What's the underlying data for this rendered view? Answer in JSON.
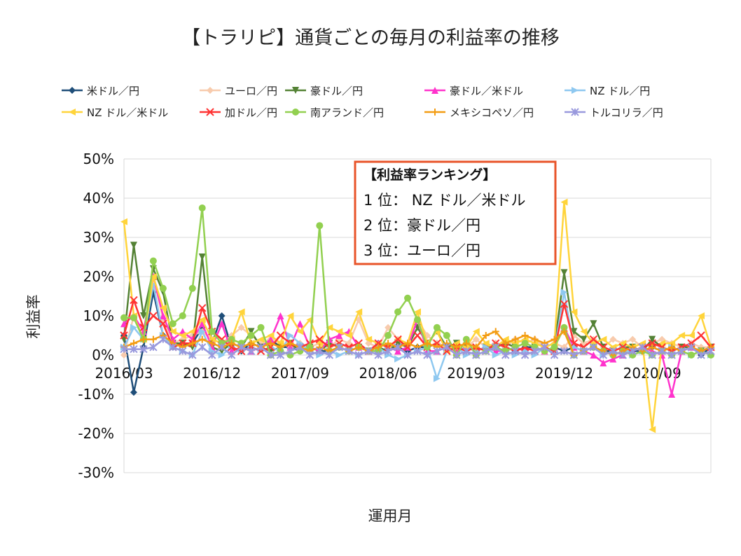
{
  "chart_data": {
    "type": "line",
    "title": "【トラリピ】通貨ごとの毎月の利益率の推移",
    "xlabel": "運用月",
    "ylabel": "利益率",
    "ylim": [
      -0.3,
      0.5
    ],
    "ytick_labels": [
      "50%",
      "40%",
      "30%",
      "20%",
      "10%",
      "0%",
      "-10%",
      "-20%",
      "-30%"
    ],
    "x_tick_labels": [
      "2016/03",
      "2016/12",
      "2017/09",
      "2018/06",
      "2019/03",
      "2019/12",
      "2020/09"
    ],
    "months_count": 61,
    "legend_position": "top",
    "grid": true,
    "series": [
      {
        "name": "米ドル／円",
        "color": "#1f4e79",
        "marker": "diamond",
        "values": [
          0.05,
          -0.095,
          0.02,
          0.16,
          0.05,
          0.02,
          0.03,
          0.03,
          0.07,
          0.03,
          0.1,
          0.02,
          0.01,
          0.03,
          0.02,
          0.04,
          0.02,
          0.02,
          0.01,
          0.02,
          0.01,
          0.01,
          0.02,
          0.01,
          0.02,
          0.01,
          0.03,
          0.02,
          0.02,
          0.01,
          0.02,
          0.02,
          0.03,
          0.02,
          0.03,
          0.02,
          0.01,
          0.02,
          0.03,
          0.02,
          0.01,
          0.02,
          0.02,
          0.01,
          0.02,
          0.01,
          0.02,
          0.01,
          0.02,
          0.01,
          0.01,
          0.02,
          0.01,
          0.01,
          0.02,
          0.01,
          0.02,
          0.01,
          0.02,
          0.0,
          0.02
        ]
      },
      {
        "name": "ユーロ／円",
        "color": "#f8cbad",
        "marker": "diamond",
        "values": [
          0.0,
          0.1,
          0.04,
          0.2,
          0.09,
          0.03,
          0.04,
          0.05,
          0.06,
          0.04,
          0.03,
          0.05,
          0.07,
          0.05,
          0.03,
          0.04,
          0.03,
          0.02,
          0.03,
          0.02,
          0.03,
          0.02,
          0.04,
          0.03,
          0.09,
          0.03,
          0.02,
          0.07,
          0.04,
          0.02,
          0.09,
          0.05,
          0.03,
          0.02,
          0.03,
          0.02,
          0.04,
          0.02,
          0.03,
          0.02,
          0.04,
          0.03,
          0.04,
          0.02,
          0.03,
          0.02,
          0.05,
          0.03,
          0.04,
          0.02,
          0.04,
          0.03,
          0.04,
          0.02,
          0.03,
          0.04,
          0.03,
          0.02,
          0.03,
          0.02,
          0.02
        ]
      },
      {
        "name": "豪ドル／円",
        "color": "#548235",
        "marker": "tri-down",
        "values": [
          0.04,
          0.28,
          0.1,
          0.22,
          0.16,
          0.03,
          0.03,
          0.02,
          0.25,
          0.02,
          0.01,
          0.03,
          0.02,
          0.06,
          0.02,
          0.01,
          0.02,
          0.03,
          0.01,
          0.02,
          0.01,
          0.03,
          0.02,
          0.01,
          0.02,
          0.01,
          0.02,
          0.01,
          0.03,
          0.02,
          0.07,
          0.03,
          0.06,
          0.02,
          0.03,
          0.02,
          0.01,
          0.02,
          0.02,
          0.03,
          0.02,
          0.01,
          0.02,
          0.01,
          0.02,
          0.21,
          0.06,
          0.04,
          0.08,
          0.02,
          0.01,
          0.02,
          0.02,
          0.01,
          0.04,
          0.02,
          0.01,
          0.02,
          0.02,
          0.01,
          0.02
        ]
      },
      {
        "name": "豪ドル／米ドル",
        "color": "#ff33cc",
        "marker": "tri-up",
        "values": [
          0.08,
          0.1,
          0.06,
          0.2,
          0.1,
          0.04,
          0.06,
          0.04,
          0.08,
          0.02,
          0.08,
          0.01,
          0.02,
          0.01,
          0.02,
          0.04,
          0.1,
          0.02,
          0.08,
          0.02,
          0.01,
          0.04,
          0.05,
          0.06,
          0.02,
          0.01,
          0.03,
          0.02,
          0.01,
          0.02,
          0.09,
          0.01,
          0.01,
          0.02,
          0.01,
          0.02,
          0.01,
          0.02,
          0.01,
          0.01,
          0.02,
          0.01,
          0.02,
          0.01,
          0.02,
          0.07,
          0.02,
          0.01,
          0.0,
          -0.02,
          -0.01,
          0.0,
          0.01,
          0.02,
          0.01,
          0.0,
          -0.1,
          0.01,
          0.02,
          0.01,
          0.02
        ]
      },
      {
        "name": "NZ ドル／円",
        "color": "#8ec8f0",
        "marker": "tri-right",
        "values": [
          0.02,
          0.07,
          0.04,
          0.18,
          0.05,
          0.02,
          0.01,
          0.0,
          0.06,
          0.01,
          0.0,
          0.02,
          0.01,
          0.02,
          0.01,
          0.02,
          0.01,
          0.05,
          0.03,
          0.01,
          0.0,
          0.01,
          0.0,
          0.01,
          0.0,
          0.01,
          0.02,
          0.0,
          -0.01,
          0.0,
          0.01,
          0.02,
          -0.06,
          0.01,
          0.02,
          0.0,
          0.01,
          0.02,
          0.0,
          0.01,
          0.0,
          0.01,
          0.0,
          0.02,
          0.01,
          0.16,
          0.02,
          0.01,
          0.02,
          0.0,
          0.01,
          0.02,
          0.0,
          0.01,
          0.0,
          0.01,
          0.02,
          0.01,
          0.0,
          0.01,
          0.0
        ]
      },
      {
        "name": "NZ ドル／米ドル",
        "color": "#ffd43b",
        "marker": "tri-left",
        "values": [
          0.34,
          0.1,
          0.04,
          0.2,
          0.12,
          0.06,
          0.05,
          0.06,
          0.09,
          0.04,
          0.03,
          0.04,
          0.11,
          0.03,
          0.04,
          0.05,
          0.03,
          0.1,
          0.06,
          0.09,
          0.03,
          0.07,
          0.06,
          0.05,
          0.11,
          0.04,
          0.03,
          0.02,
          0.04,
          0.03,
          0.11,
          0.03,
          0.06,
          0.01,
          0.03,
          0.02,
          0.06,
          0.03,
          0.02,
          0.04,
          0.03,
          0.04,
          0.03,
          0.02,
          0.03,
          0.39,
          0.11,
          0.06,
          0.03,
          0.04,
          0.02,
          0.03,
          0.02,
          0.03,
          -0.19,
          0.03,
          0.03,
          0.05,
          0.05,
          0.1,
          0.02
        ]
      },
      {
        "name": "加ドル／円",
        "color": "#ff3333",
        "marker": "x",
        "values": [
          0.05,
          0.14,
          0.07,
          0.1,
          0.08,
          0.02,
          0.03,
          0.03,
          0.12,
          0.06,
          0.04,
          0.02,
          0.01,
          0.02,
          0.01,
          0.02,
          0.05,
          0.03,
          0.02,
          0.03,
          0.04,
          0.02,
          0.03,
          0.02,
          0.03,
          0.01,
          0.03,
          0.02,
          0.04,
          0.02,
          0.05,
          0.02,
          0.03,
          0.01,
          0.02,
          0.01,
          0.02,
          0.01,
          0.03,
          0.02,
          0.01,
          0.02,
          0.01,
          0.02,
          0.01,
          0.13,
          0.03,
          0.02,
          0.04,
          0.02,
          0.01,
          0.02,
          0.01,
          0.02,
          0.03,
          0.02,
          0.01,
          0.02,
          0.03,
          0.05,
          0.02
        ]
      },
      {
        "name": "南アランド／円",
        "color": "#92d050",
        "marker": "circle",
        "values": [
          0.095,
          0.095,
          0.04,
          0.24,
          0.17,
          0.08,
          0.1,
          0.17,
          0.375,
          0.06,
          0.03,
          0.04,
          0.03,
          0.05,
          0.07,
          0.0,
          0.01,
          0.0,
          0.01,
          0.02,
          0.33,
          0.01,
          0.02,
          0.01,
          0.02,
          0.01,
          0.01,
          0.05,
          0.11,
          0.145,
          0.09,
          0.02,
          0.07,
          0.05,
          0.0,
          0.04,
          0.0,
          0.01,
          0.02,
          0.01,
          0.02,
          0.03,
          0.02,
          0.01,
          0.02,
          0.07,
          0.0,
          0.01,
          0.02,
          0.01,
          0.0,
          0.01,
          0.0,
          0.01,
          0.0,
          0.01,
          0.0,
          0.01,
          0.0,
          0.01,
          0.0
        ]
      },
      {
        "name": "メキシコペソ／円",
        "color": "#f39c12",
        "marker": "plus",
        "values": [
          0.02,
          0.03,
          0.04,
          0.04,
          0.05,
          0.03,
          0.02,
          0.03,
          0.04,
          0.03,
          0.02,
          0.03,
          0.02,
          0.03,
          0.02,
          0.03,
          0.02,
          0.03,
          0.02,
          0.01,
          0.02,
          0.01,
          0.02,
          0.01,
          0.02,
          0.01,
          0.02,
          0.03,
          0.02,
          0.03,
          0.02,
          0.03,
          0.02,
          0.03,
          0.02,
          0.03,
          0.02,
          0.05,
          0.06,
          0.03,
          0.04,
          0.05,
          0.04,
          0.03,
          0.04,
          0.06,
          0.0,
          0.01,
          0.02,
          0.01,
          0.0,
          0.01,
          0.02,
          0.01,
          0.02,
          0.01,
          0.02,
          0.01,
          0.02,
          0.01,
          0.02
        ]
      },
      {
        "name": "トルコリラ／円",
        "color": "#9999dd",
        "marker": "star",
        "values": [
          0.015,
          0.015,
          0.015,
          0.02,
          0.04,
          0.02,
          0.01,
          0.0,
          0.02,
          0.0,
          0.02,
          0.0,
          0.02,
          0.01,
          0.02,
          0.0,
          0.0,
          0.01,
          0.02,
          0.0,
          0.01,
          0.0,
          0.02,
          0.01,
          0.0,
          0.01,
          0.0,
          0.01,
          0.02,
          0.0,
          0.01,
          0.0,
          0.01,
          0.02,
          0.0,
          0.01,
          0.0,
          0.01,
          0.02,
          0.0,
          0.01,
          0.0,
          0.01,
          0.02,
          0.0,
          0.01,
          0.0,
          0.01,
          0.02,
          0.0,
          0.01,
          0.0,
          0.01,
          0.02,
          0.0,
          0.01,
          0.0,
          0.01,
          0.02,
          0.0,
          0.01
        ]
      }
    ],
    "annotation": {
      "heading": "【利益率ランキング】",
      "lines": [
        "1 位：  NZ ドル／米ドル",
        "2 位：豪ドル／円",
        "3 位：ユーロ／円"
      ],
      "border_color": "#e8542a"
    }
  }
}
